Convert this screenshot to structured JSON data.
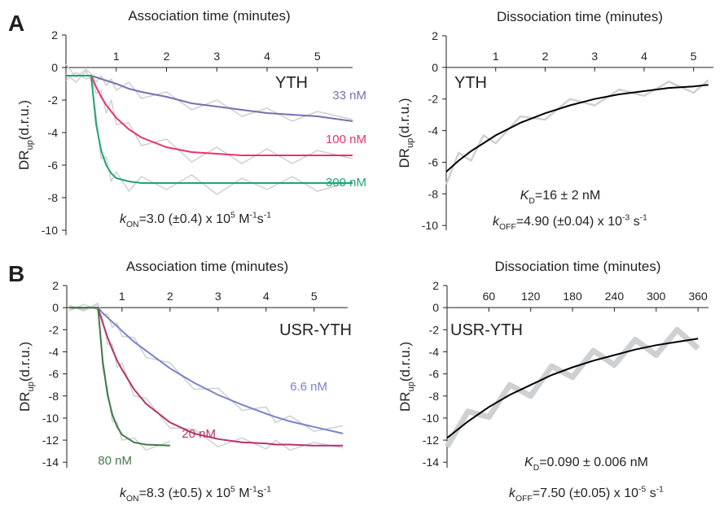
{
  "panel_labels": [
    "A",
    "B"
  ],
  "chart_data": [
    {
      "type": "line",
      "x_label": "Association time (minutes)",
      "y_label": [
        {
          "text": "DR",
          "style": "normal"
        },
        {
          "text": "up",
          "style": "sub"
        },
        {
          "text": "(d.r.u.)",
          "style": "normal"
        }
      ],
      "xlim": [
        0,
        5.7
      ],
      "ylim": [
        -10.3,
        2
      ],
      "xticks": [
        1,
        2,
        3,
        4,
        5
      ],
      "yticks": [
        2,
        0,
        -2,
        -4,
        -6,
        -8,
        -10
      ],
      "x": [
        0,
        0.2,
        0.4,
        0.5,
        0.6,
        0.7,
        0.8,
        0.9,
        1,
        1.25,
        1.5,
        2,
        2.5,
        3,
        3.5,
        4,
        4.5,
        5,
        5.7
      ],
      "raw_color": "#cfd0d2",
      "raw": [
        [
          0.2,
          -0.6,
          -0.1,
          -0.4,
          -0.9,
          -0.5,
          -1.1,
          -0.7,
          -1.4,
          -0.9,
          -1.9,
          -1.5,
          -2.6,
          -2.0,
          -3.0,
          -2.5,
          -3.3,
          -2.7,
          -3.2
        ],
        [
          -0.8,
          -0.3,
          -0.7,
          -0.6,
          -1.6,
          -1.4,
          -2.8,
          -2.0,
          -3.5,
          -3.4,
          -4.8,
          -4.4,
          -5.8,
          -4.9,
          -5.9,
          -5.0,
          -5.9,
          -5.1,
          -5.6
        ],
        [
          -0.4,
          -0.9,
          -0.2,
          -0.8,
          -3.0,
          -5.6,
          -5.5,
          -7.0,
          -6.4,
          -7.6,
          -6.7,
          -7.5,
          -6.6,
          -7.8,
          -6.8,
          -7.5,
          -6.7,
          -7.6,
          -7.0
        ]
      ],
      "series": [
        {
          "name": "33 nM",
          "color": "#7472b0",
          "values": [
            -0.5,
            -0.5,
            -0.5,
            -0.5,
            -0.6,
            -0.7,
            -0.8,
            -0.9,
            -1.0,
            -1.3,
            -1.5,
            -1.8,
            -2.2,
            -2.4,
            -2.6,
            -2.8,
            -2.9,
            -3.0,
            -3.3
          ]
        },
        {
          "name": "100 nM",
          "color": "#e8336d",
          "values": [
            -0.5,
            -0.5,
            -0.5,
            -0.5,
            -1.2,
            -1.8,
            -2.3,
            -2.7,
            -3.1,
            -3.8,
            -4.3,
            -4.9,
            -5.2,
            -5.3,
            -5.4,
            -5.4,
            -5.4,
            -5.4,
            -5.4
          ]
        },
        {
          "name": "300 nM",
          "color": "#22a374",
          "values": [
            -0.5,
            -0.5,
            -0.5,
            -0.5,
            -3.5,
            -5.1,
            -6.0,
            -6.5,
            -6.8,
            -7.0,
            -7.1,
            -7.1,
            -7.1,
            -7.1,
            -7.1,
            -7.1,
            -7.1,
            -7.1,
            -7.1
          ]
        }
      ],
      "label": "YTH",
      "rate": [
        {
          "text": "k",
          "style": "italic"
        },
        {
          "text": "ON",
          "style": "sub"
        },
        {
          "text": "=3.0 (±0.4) x 10",
          "style": "normal"
        },
        {
          "text": "5",
          "style": "sup"
        },
        {
          "text": " M",
          "style": "normal"
        },
        {
          "text": "-1",
          "style": "sup"
        },
        {
          "text": "s",
          "style": "normal"
        },
        {
          "text": "-1",
          "style": "sup"
        }
      ]
    },
    {
      "type": "line",
      "x_label": "Dissociation time (minutes)",
      "y_label": [
        {
          "text": "DR",
          "style": "normal"
        },
        {
          "text": "up",
          "style": "sub"
        },
        {
          "text": "(d.r.u.)",
          "style": "normal"
        }
      ],
      "xlim": [
        0,
        5.4
      ],
      "ylim": [
        -10.3,
        2
      ],
      "xticks": [
        1,
        2,
        3,
        4,
        5
      ],
      "yticks": [
        2,
        0,
        -2,
        -4,
        -6,
        -8,
        -10
      ],
      "x": [
        0,
        0.25,
        0.5,
        0.75,
        1,
        1.5,
        2,
        2.5,
        3,
        3.5,
        4,
        4.5,
        5,
        5.3
      ],
      "raw_color": "#cfd0d2",
      "raw": [
        [
          -7.4,
          -5.4,
          -5.9,
          -4.3,
          -4.8,
          -3.1,
          -3.3,
          -2.0,
          -2.4,
          -1.4,
          -1.8,
          -0.9,
          -1.6,
          -0.8
        ]
      ],
      "series": [
        {
          "color": "#000000",
          "values": [
            -6.6,
            -5.9,
            -5.3,
            -4.8,
            -4.3,
            -3.5,
            -2.9,
            -2.4,
            -2.0,
            -1.7,
            -1.5,
            -1.3,
            -1.2,
            -1.1
          ]
        }
      ],
      "label": "YTH",
      "kd": [
        {
          "text": "K",
          "style": "italic"
        },
        {
          "text": "D",
          "style": "sub"
        },
        {
          "text": "=16 ± 2 nM",
          "style": "normal"
        }
      ],
      "rate": [
        {
          "text": "k",
          "style": "italic"
        },
        {
          "text": "OFF",
          "style": "sub"
        },
        {
          "text": "=4.90 (±0.04) x 10",
          "style": "normal"
        },
        {
          "text": "-3",
          "style": "sup"
        },
        {
          "text": " s",
          "style": "normal"
        },
        {
          "text": "-1",
          "style": "sup"
        }
      ]
    },
    {
      "type": "line",
      "x_label": "Association time (minutes)",
      "y_label": [
        {
          "text": "DR",
          "style": "normal"
        },
        {
          "text": "up",
          "style": "sub"
        },
        {
          "text": "(d.r.u.)",
          "style": "normal"
        }
      ],
      "xlim": [
        -0.15,
        5.7
      ],
      "ylim": [
        -14.5,
        2
      ],
      "xticks": [
        1,
        2,
        3,
        4,
        5
      ],
      "yticks": [
        2,
        0,
        -2,
        -4,
        -6,
        -8,
        -10,
        -12,
        -14
      ],
      "x": [
        -0.1,
        0.2,
        0.5,
        0.6,
        0.7,
        0.8,
        0.9,
        1,
        1.25,
        1.5,
        2,
        2.5,
        3,
        3.5,
        4,
        4.2,
        4.5,
        5,
        5.6
      ],
      "raw_color": "#cfd0d2",
      "raw": [
        [
          0.2,
          -0.2,
          0.3,
          -0.6,
          -0.6,
          -1.8,
          -1.4,
          -2.6,
          -2.7,
          -4.5,
          -5.0,
          -7.4,
          -7.3,
          -9.3,
          -9.0,
          -10.4,
          -9.8,
          -11.2,
          -10.7
        ],
        [
          -0.3,
          0.3,
          -0.2,
          -1.0,
          -3.3,
          -3.3,
          -5.4,
          -5.0,
          -8.0,
          -8.2,
          -10.9,
          -11.0,
          -12.6,
          -11.8,
          -12.8,
          -12.0,
          -12.9,
          -12.2,
          -12.7
        ],
        [
          0.2,
          -0.3,
          0.4,
          -5.5,
          -7.4,
          -10.3,
          -10.4,
          -12.0,
          -11.8,
          -12.9,
          -12.1,
          null,
          null,
          null,
          null,
          null,
          null,
          null,
          null
        ]
      ],
      "series": [
        {
          "name": "6.6 nM",
          "color": "#7b83c9",
          "values": [
            0,
            0,
            0,
            -0.5,
            -0.9,
            -1.3,
            -1.7,
            -2.1,
            -3.1,
            -3.9,
            -5.5,
            -6.8,
            -7.9,
            -8.8,
            -9.6,
            -9.9,
            -10.3,
            -10.8,
            -11.4
          ]
        },
        {
          "name": "20 nM",
          "color": "#b5336b",
          "values": [
            0,
            0,
            0,
            -1.4,
            -2.7,
            -3.8,
            -4.8,
            -5.6,
            -7.4,
            -8.7,
            -10.4,
            -11.4,
            -11.9,
            -12.2,
            -12.3,
            -12.4,
            -12.4,
            -12.5,
            -12.5
          ]
        },
        {
          "name": "80 nM",
          "color": "#3f7a45",
          "values": [
            0,
            0,
            0,
            -4.9,
            -7.9,
            -9.7,
            -10.8,
            -11.5,
            -12.2,
            -12.4,
            -12.5,
            null,
            null,
            null,
            null,
            null,
            null,
            null,
            null
          ]
        }
      ],
      "label": "USR-YTH",
      "rate": [
        {
          "text": "k",
          "style": "italic"
        },
        {
          "text": "ON",
          "style": "sub"
        },
        {
          "text": "=8.3 (±0.5) x 10",
          "style": "normal"
        },
        {
          "text": "5",
          "style": "sup"
        },
        {
          "text": " M",
          "style": "normal"
        },
        {
          "text": "-1",
          "style": "sup"
        },
        {
          "text": "s",
          "style": "normal"
        },
        {
          "text": "-1",
          "style": "sup"
        }
      ]
    },
    {
      "type": "line",
      "x_label": "Dissociation time (minutes)",
      "y_label": [
        {
          "text": "DR",
          "style": "normal"
        },
        {
          "text": "up",
          "style": "sub"
        },
        {
          "text": "(d.r.u.)",
          "style": "normal"
        }
      ],
      "xlim": [
        0,
        375
      ],
      "ylim": [
        -14.5,
        2
      ],
      "xticks": [
        60,
        120,
        180,
        240,
        300,
        360
      ],
      "yticks": [
        2,
        0,
        -2,
        -4,
        -6,
        -8,
        -10,
        -12,
        -14
      ],
      "x": [
        0,
        30,
        60,
        90,
        120,
        150,
        180,
        210,
        240,
        270,
        300,
        330,
        360
      ],
      "raw_color": "#cfd0d2",
      "raw": [
        [
          -12.6,
          -9.4,
          -9.9,
          -7.0,
          -8.0,
          -5.3,
          -6.3,
          -3.9,
          -5.2,
          -2.9,
          -4.3,
          -2.0,
          -3.7
        ]
      ],
      "series": [
        {
          "color": "#000000",
          "values": [
            -11.8,
            -10.3,
            -9.0,
            -7.9,
            -7.0,
            -6.1,
            -5.4,
            -4.8,
            -4.3,
            -3.8,
            -3.4,
            -3.1,
            -2.8
          ]
        }
      ],
      "label": "USR-YTH",
      "kd": [
        {
          "text": "K",
          "style": "italic"
        },
        {
          "text": "D",
          "style": "sub"
        },
        {
          "text": "=0.090 ± 0.006 nM",
          "style": "normal"
        }
      ],
      "rate": [
        {
          "text": "k",
          "style": "italic"
        },
        {
          "text": "OFF",
          "style": "sub"
        },
        {
          "text": "=7.50 (±0.05) x 10",
          "style": "normal"
        },
        {
          "text": "-5",
          "style": "sup"
        },
        {
          "text": " s",
          "style": "normal"
        },
        {
          "text": "-1",
          "style": "sup"
        }
      ]
    }
  ]
}
